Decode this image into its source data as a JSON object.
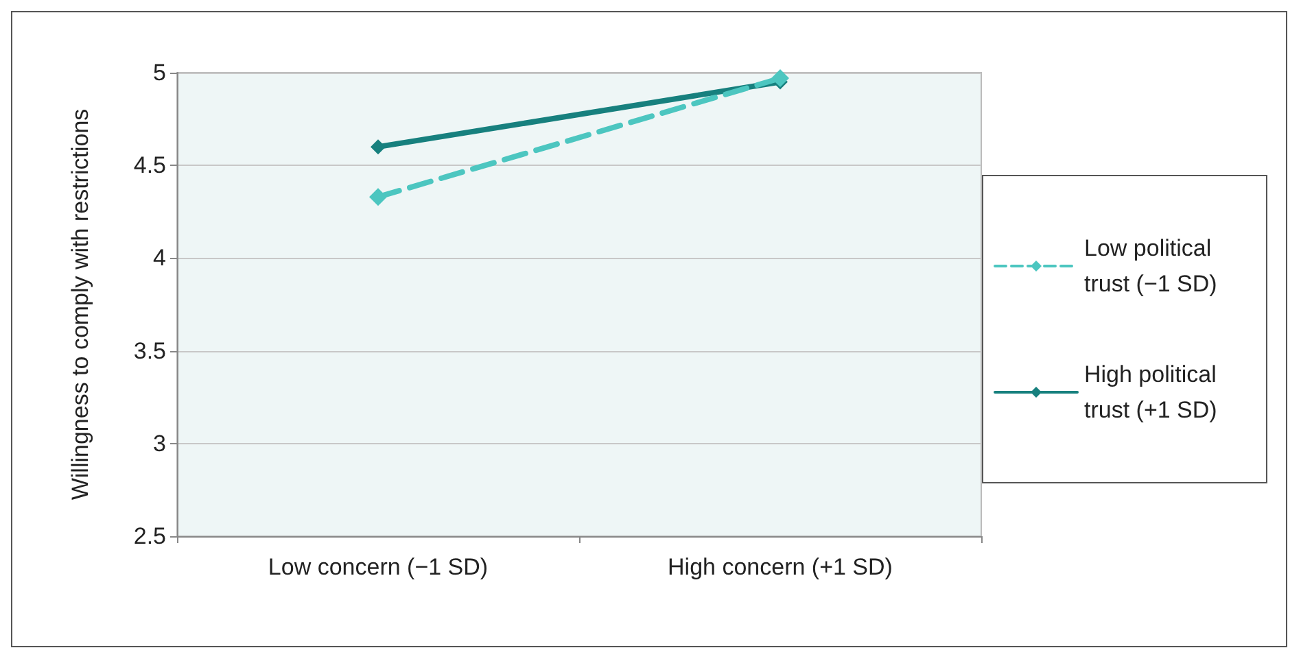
{
  "chart_data": {
    "type": "line",
    "ylabel": "Willingness to comply with restrictions",
    "categories": [
      "Low concern (−1 SD)",
      "High concern (+1 SD)"
    ],
    "series": [
      {
        "name": "Low political trust (−1 SD)",
        "color": "#4cc6c0",
        "line_style": "dashed",
        "values": [
          4.33,
          4.97
        ]
      },
      {
        "name": "High political trust (+1 SD)",
        "color": "#17807e",
        "line_style": "solid",
        "values": [
          4.6,
          4.95
        ]
      }
    ],
    "ylim": [
      2.5,
      5
    ],
    "yticks": [
      2.5,
      3,
      3.5,
      4,
      4.5,
      5
    ],
    "grid": "y",
    "legend": "right",
    "marker": "diamond"
  }
}
